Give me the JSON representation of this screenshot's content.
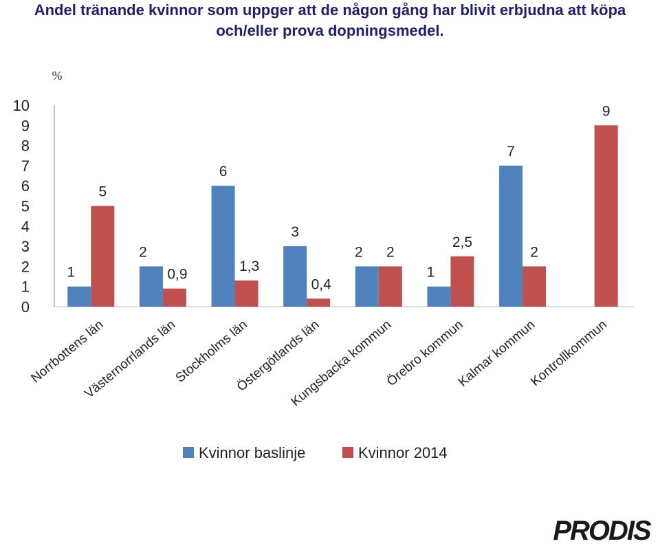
{
  "title_line1": "Andel tränande kvinnor som uppger att de någon gång har blivit erbjudna att köpa",
  "title_line2": "och/eller prova dopningsmedel.",
  "logo_text": "PRODIS",
  "chart_data": {
    "type": "bar",
    "unit_label": "%",
    "ylim": [
      0,
      10
    ],
    "yticks": [
      "0",
      "1",
      "2",
      "3",
      "4",
      "5",
      "6",
      "7",
      "8",
      "9",
      "10"
    ],
    "categories": [
      "Norrbottens län",
      "Västernorrlands län",
      "Stockholms län",
      "Östergötlands län",
      "Kungsbacka kommun",
      "Örebro kommun",
      "Kalmar kommun",
      "Kontrollkommun"
    ],
    "series": [
      {
        "name": "Kvinnor baslinje",
        "color": "#4F81BD",
        "values": [
          1,
          2,
          6,
          3,
          2,
          1,
          7,
          null
        ],
        "labels": [
          "1",
          "2",
          "6",
          "3",
          "2",
          "1",
          "7",
          ""
        ]
      },
      {
        "name": "Kvinnor 2014",
        "color": "#C0504D",
        "values": [
          5,
          0.9,
          1.3,
          0.4,
          2,
          2.5,
          2,
          9
        ],
        "labels": [
          "5",
          "0,9",
          "1,3",
          "0,4",
          "2",
          "2,5",
          "2",
          "9"
        ]
      }
    ],
    "grid": false,
    "legend_position": "bottom"
  }
}
